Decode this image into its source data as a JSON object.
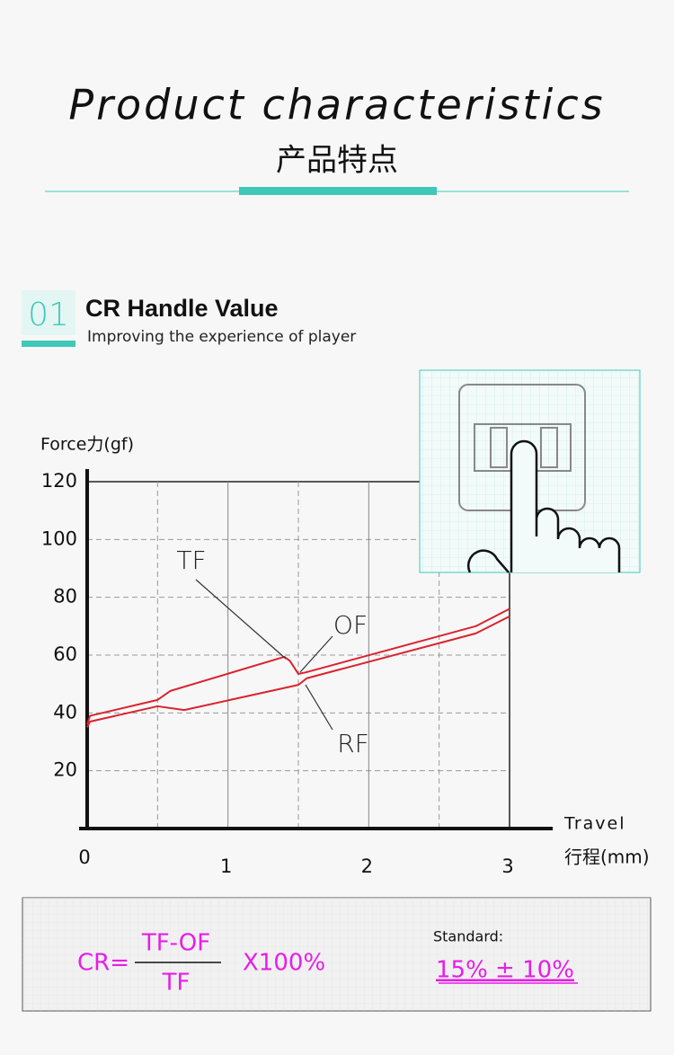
{
  "header": {
    "title": "Product characteristics",
    "subtitle": "产品特点"
  },
  "section": {
    "number": "01",
    "title": "CR Handle Value",
    "subtitle": "Improving the experience of player"
  },
  "chart_data": {
    "type": "line",
    "y_label": "Force力(gf)",
    "x_label": "Travel",
    "x_label_cn": "行程(mm)",
    "xlim": [
      0,
      3
    ],
    "ylim": [
      0,
      120
    ],
    "xticks": [
      0,
      1,
      2,
      3
    ],
    "yticks": [
      20,
      40,
      60,
      80,
      100,
      120
    ],
    "grid": true,
    "series": [
      {
        "color": "#d9232e",
        "x": [
          0,
          0.02,
          0.5,
          0.59,
          1.4,
          1.44,
          1.5,
          1.55,
          2.76,
          3
        ],
        "values": [
          36,
          39,
          44.5,
          47.6,
          59.4,
          58,
          53.5,
          54,
          70,
          76
        ]
      },
      {
        "color": "#d9232e",
        "x": [
          0,
          0.02,
          0.5,
          0.69,
          1.5,
          1.56,
          2.76,
          3
        ],
        "values": [
          35,
          37,
          42.3,
          41,
          49.7,
          52,
          67.5,
          73.4
        ]
      }
    ],
    "annotations": [
      "TF",
      "OF",
      "RF"
    ]
  },
  "formula": {
    "lhs": "CR=",
    "numerator": "TF-OF",
    "denominator": "TF",
    "multiplier": "X100%",
    "standard_label": "Standard:",
    "standard": "15% ± 10%"
  }
}
